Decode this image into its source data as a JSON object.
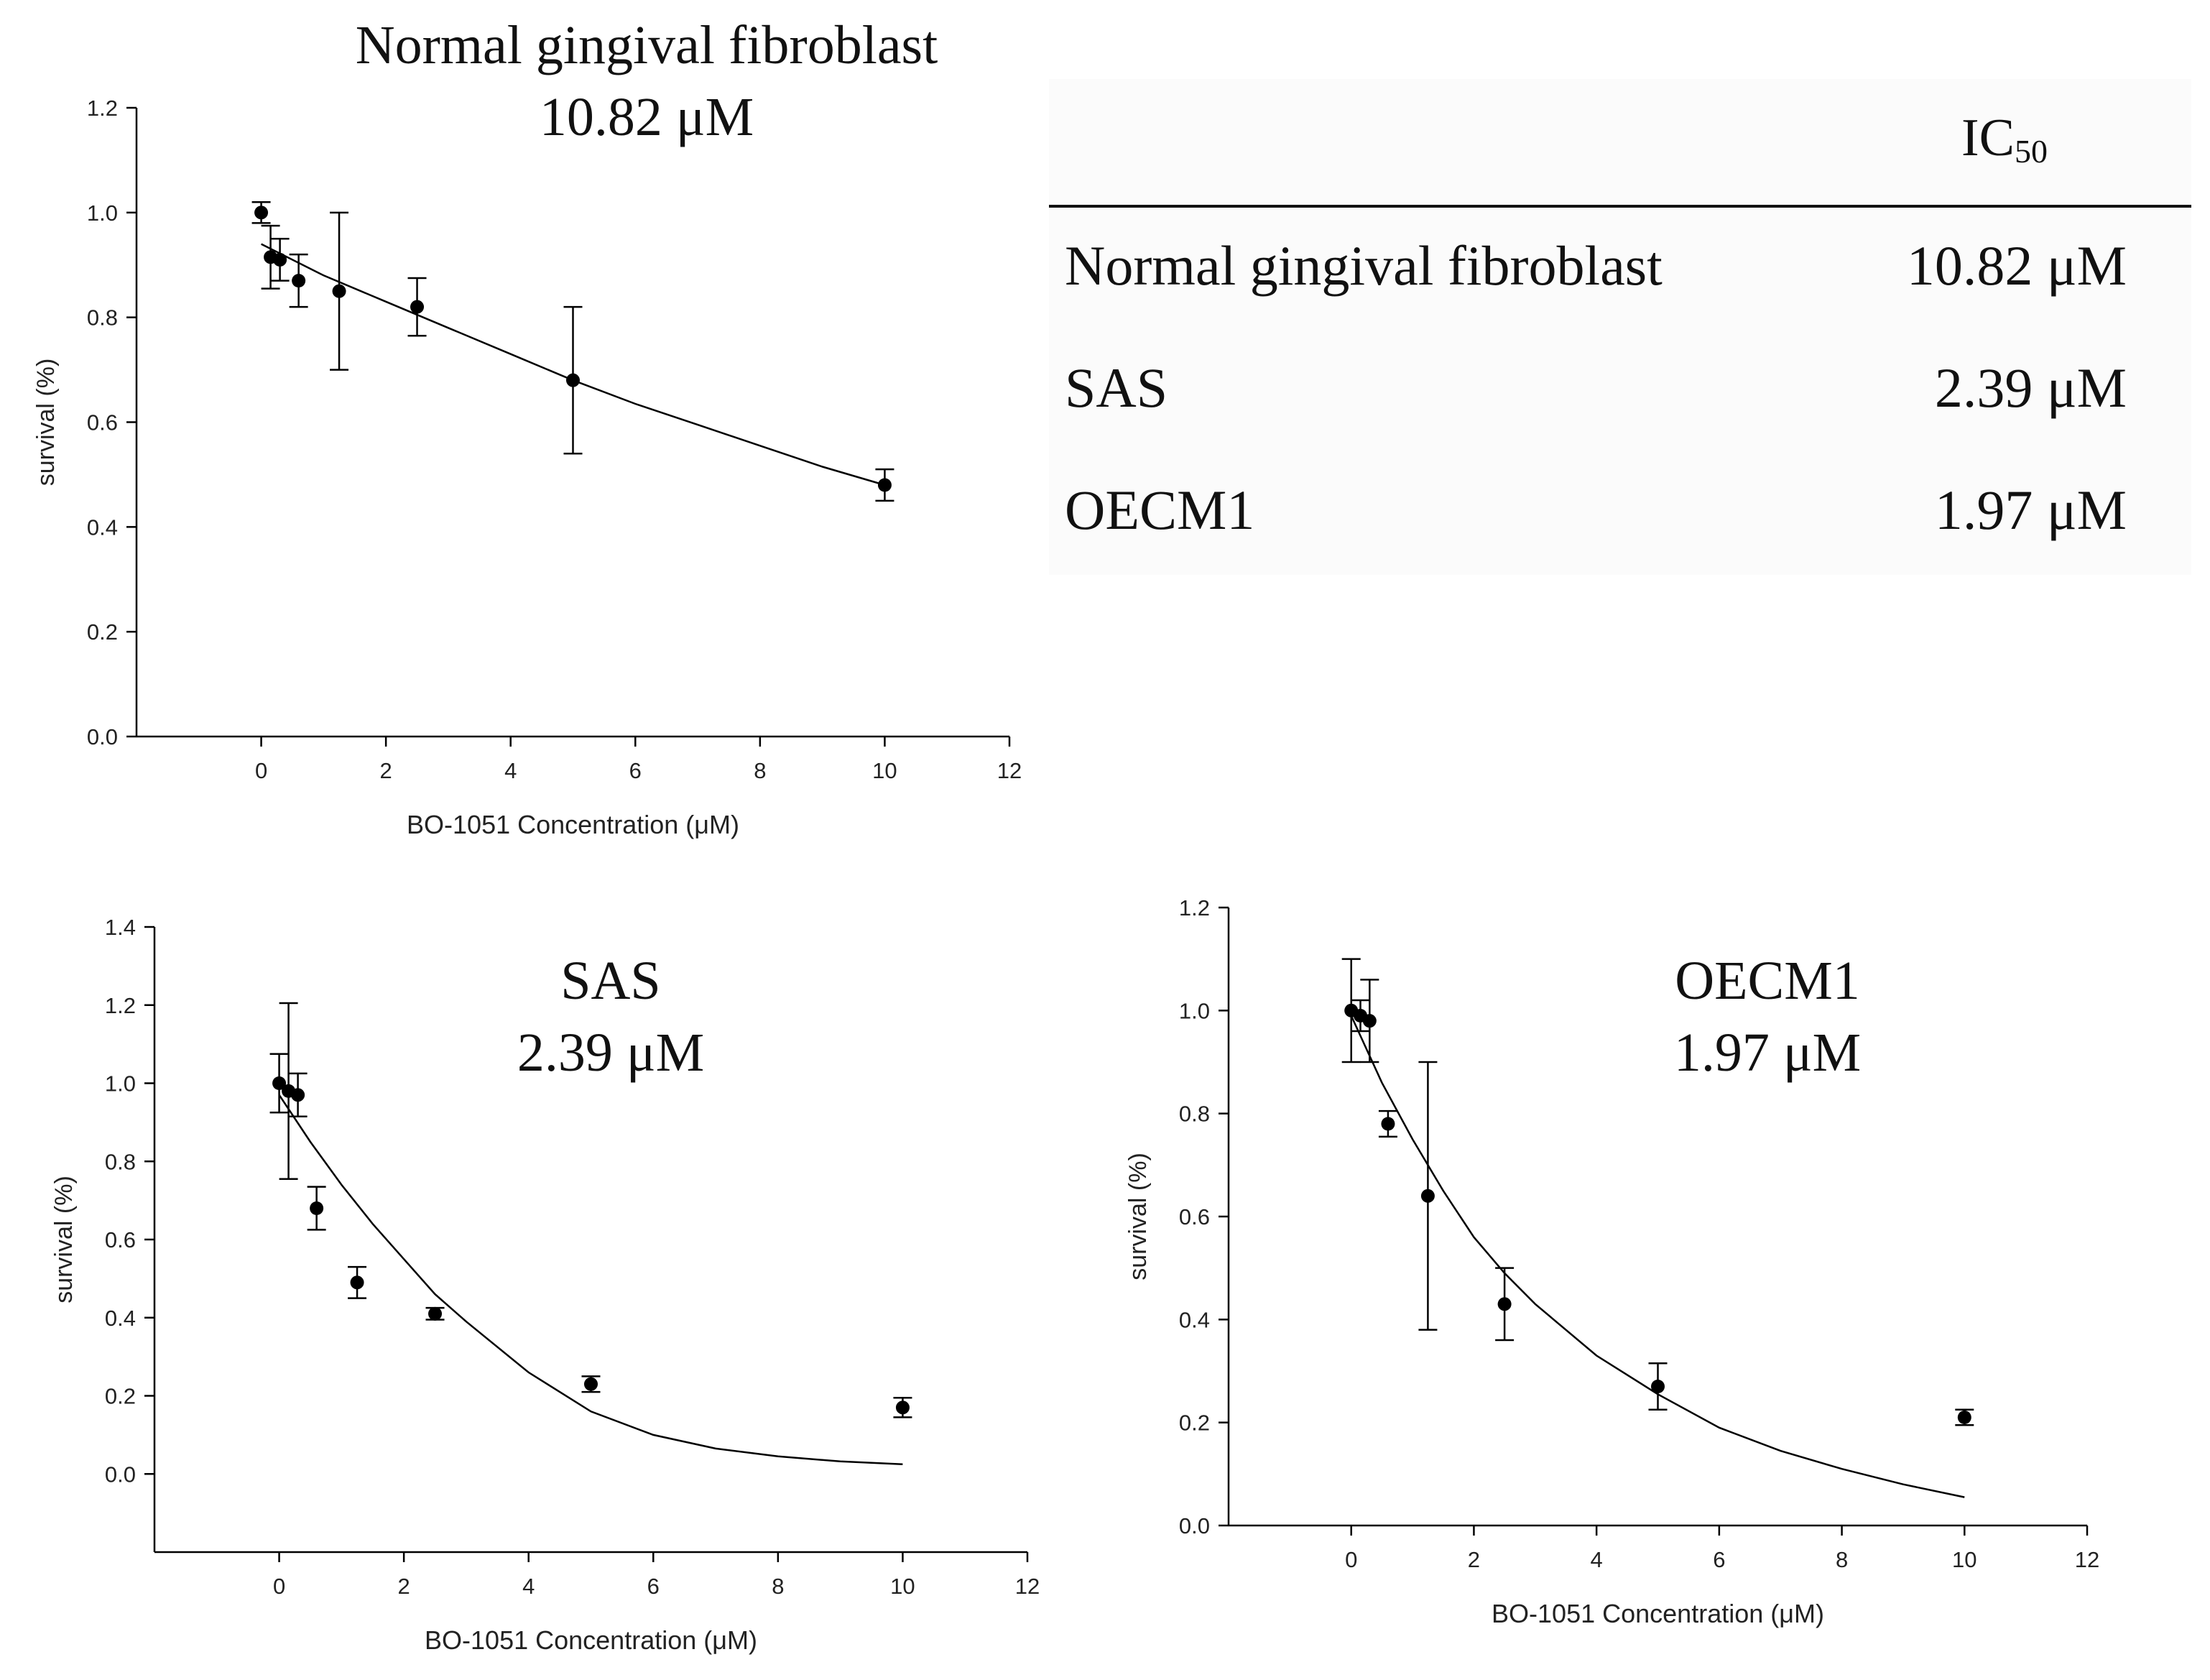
{
  "chart_data": [
    {
      "type": "scatter",
      "id": "fibro",
      "title": "Normal gingival fibroblast",
      "subtitle": "10.82 μM",
      "xlabel": "BO-1051 Concentration (μM)",
      "ylabel": "survival (%)",
      "xlim": [
        -2,
        12
      ],
      "ylim": [
        0.0,
        1.2
      ],
      "xticks": [
        "0",
        "2",
        "4",
        "6",
        "8",
        "10",
        "12"
      ],
      "yticks": [
        "0.0",
        "0.2",
        "0.4",
        "0.6",
        "0.8",
        "1.0",
        "1.2"
      ],
      "grid": false,
      "points": [
        {
          "x": 0,
          "y": 1.0,
          "err": 0.02
        },
        {
          "x": 0.15,
          "y": 0.915,
          "err": 0.06
        },
        {
          "x": 0.3,
          "y": 0.91,
          "err": 0.04
        },
        {
          "x": 0.6,
          "y": 0.87,
          "err": 0.05
        },
        {
          "x": 1.25,
          "y": 0.85,
          "err": 0.15
        },
        {
          "x": 2.5,
          "y": 0.82,
          "err": 0.055
        },
        {
          "x": 5,
          "y": 0.68,
          "err": 0.14
        },
        {
          "x": 10,
          "y": 0.48,
          "err": 0.03
        }
      ],
      "fit": {
        "x": [
          0,
          1,
          2,
          3,
          4,
          5,
          6,
          7,
          8,
          9,
          10
        ],
        "y": [
          0.94,
          0.88,
          0.83,
          0.78,
          0.73,
          0.68,
          0.635,
          0.595,
          0.555,
          0.515,
          0.48
        ]
      }
    },
    {
      "type": "scatter",
      "id": "sas",
      "title": "SAS",
      "subtitle": "2.39 μM",
      "xlabel": "BO-1051 Concentration (μM)",
      "ylabel": "survival (%)",
      "xlim": [
        -2,
        12
      ],
      "ylim": [
        -0.2,
        1.4
      ],
      "xticks": [
        "0",
        "2",
        "4",
        "6",
        "8",
        "10",
        "12"
      ],
      "yticks": [
        "0.0",
        "0.2",
        "0.4",
        "0.6",
        "0.8",
        "1.0",
        "1.2",
        "1.4"
      ],
      "grid": false,
      "points": [
        {
          "x": 0,
          "y": 1.0,
          "err": 0.075
        },
        {
          "x": 0.15,
          "y": 0.98,
          "err": 0.225
        },
        {
          "x": 0.3,
          "y": 0.97,
          "err": 0.055
        },
        {
          "x": 0.6,
          "y": 0.68,
          "err": 0.055
        },
        {
          "x": 1.25,
          "y": 0.49,
          "err": 0.04
        },
        {
          "x": 2.5,
          "y": 0.41,
          "err": 0.015
        },
        {
          "x": 5,
          "y": 0.23,
          "err": 0.02
        },
        {
          "x": 10,
          "y": 0.17,
          "err": 0.025
        }
      ],
      "fit": {
        "x": [
          0,
          0.5,
          1,
          1.5,
          2,
          2.5,
          3,
          4,
          5,
          6,
          7,
          8,
          9,
          10
        ],
        "y": [
          0.97,
          0.85,
          0.74,
          0.64,
          0.55,
          0.46,
          0.39,
          0.26,
          0.16,
          0.1,
          0.065,
          0.045,
          0.032,
          0.025
        ]
      }
    },
    {
      "type": "scatter",
      "id": "oecm",
      "title": "OECM1",
      "subtitle": "1.97 μM",
      "xlabel": "BO-1051 Concentration (μM)",
      "ylabel": "survival (%)",
      "xlim": [
        -2,
        12
      ],
      "ylim": [
        0.0,
        1.2
      ],
      "xticks": [
        "0",
        "2",
        "4",
        "6",
        "8",
        "10",
        "12"
      ],
      "yticks": [
        "0.0",
        "0.2",
        "0.4",
        "0.6",
        "0.8",
        "1.0",
        "1.2"
      ],
      "grid": false,
      "points": [
        {
          "x": 0,
          "y": 1.0,
          "err": 0.1
        },
        {
          "x": 0.15,
          "y": 0.99,
          "err": 0.03
        },
        {
          "x": 0.3,
          "y": 0.98,
          "err": 0.08
        },
        {
          "x": 0.6,
          "y": 0.78,
          "err": 0.025
        },
        {
          "x": 1.25,
          "y": 0.64,
          "err": 0.26
        },
        {
          "x": 2.5,
          "y": 0.43,
          "err": 0.07
        },
        {
          "x": 5,
          "y": 0.27,
          "err": 0.045
        },
        {
          "x": 10,
          "y": 0.21,
          "err": 0.015
        }
      ],
      "fit": {
        "x": [
          0,
          0.5,
          1,
          1.5,
          2,
          2.5,
          3,
          4,
          5,
          6,
          7,
          8,
          9,
          10
        ],
        "y": [
          0.99,
          0.86,
          0.75,
          0.65,
          0.56,
          0.49,
          0.43,
          0.33,
          0.255,
          0.19,
          0.145,
          0.11,
          0.08,
          0.055
        ]
      }
    }
  ],
  "ic50_table": {
    "header_main": "IC",
    "header_sub": "50",
    "rows": [
      {
        "name": "Normal gingival fibroblast",
        "value": "10.82 μM"
      },
      {
        "name": "SAS",
        "value": "2.39 μM"
      },
      {
        "name": "OECM1",
        "value": "1.97 μM"
      }
    ]
  },
  "colors": {
    "marker": "#000000",
    "line": "#000000",
    "text": "#111111"
  }
}
